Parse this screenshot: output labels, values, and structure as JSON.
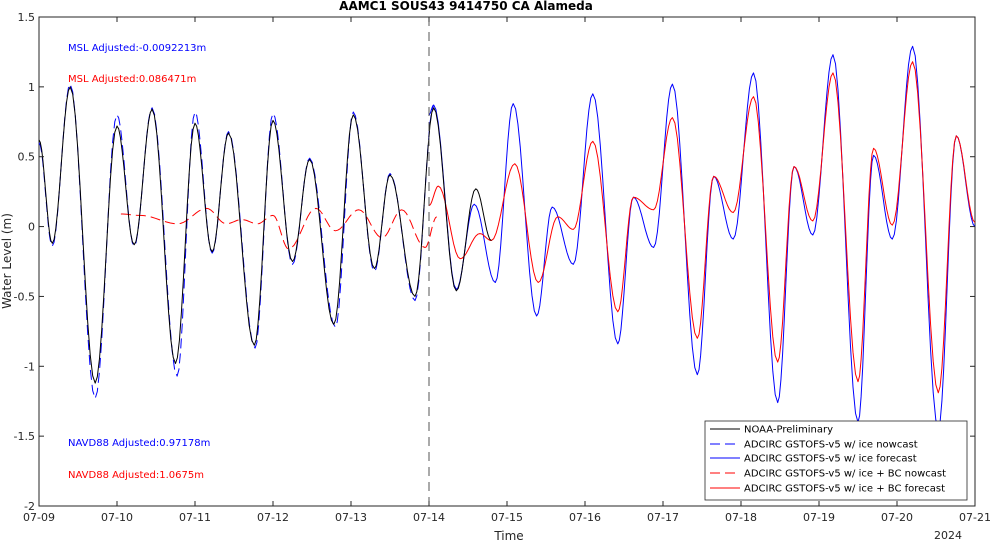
{
  "chart_data": {
    "type": "line",
    "title": "AAMC1 SOUS43 9414750 CA Alameda",
    "xlabel": "Time",
    "ylabel": "Water Level (m)",
    "xlim": [
      "07-09",
      "07-21"
    ],
    "ylim": [
      -2,
      1.5
    ],
    "x_ticks": [
      "07-09",
      "07-10",
      "07-11",
      "07-12",
      "07-13",
      "07-14",
      "07-15",
      "07-16",
      "07-17",
      "07-18",
      "07-19",
      "07-20",
      "07-21"
    ],
    "x_tick_values_days": [
      0,
      1,
      2,
      3,
      4,
      5,
      6,
      7,
      8,
      9,
      10,
      11,
      12
    ],
    "y_ticks": [
      "-2",
      "-1.5",
      "-1",
      "-0.5",
      "0",
      "0.5",
      "1",
      "1.5"
    ],
    "y_tick_values": [
      -2,
      -1.5,
      -1,
      -0.5,
      0,
      0.5,
      1,
      1.5
    ],
    "year_label": "2024",
    "nowcast_forecast_boundary": "07-14",
    "annotations": [
      {
        "text": "MSL Adjusted:-0.0092213m",
        "color": "#0000ff"
      },
      {
        "text": "MSL Adjusted:0.086471m",
        "color": "#ff0000"
      },
      {
        "text": "NAVD88 Adjusted:0.97178m",
        "color": "#0000ff"
      },
      {
        "text": "NAVD88 Adjusted:1.0675m",
        "color": "#ff0000"
      }
    ],
    "legend": {
      "placement": "bottom-right",
      "entries": [
        {
          "name": "NOAA-Preliminary",
          "color": "#000000",
          "style": "solid"
        },
        {
          "name": "ADCIRC GSTOFS-v5 w/ ice nowcast",
          "color": "#0000ff",
          "style": "dashed"
        },
        {
          "name": "ADCIRC GSTOFS-v5 w/ ice forecast",
          "color": "#0000ff",
          "style": "solid"
        },
        {
          "name": "ADCIRC GSTOFS-v5 w/ ice + BC nowcast",
          "color": "#ff0000",
          "style": "dashed"
        },
        {
          "name": "ADCIRC GSTOFS-v5 w/ ice + BC forecast",
          "color": "#ff0000",
          "style": "solid"
        }
      ]
    },
    "series": [
      {
        "name": "NOAA-Preliminary",
        "color": "#000000",
        "style": "solid",
        "extrema": [
          [
            0.0,
            0.62
          ],
          [
            0.17,
            -0.12
          ],
          [
            0.4,
            1.0
          ],
          [
            0.72,
            -1.12
          ],
          [
            1.0,
            0.72
          ],
          [
            1.22,
            -0.13
          ],
          [
            1.45,
            0.84
          ],
          [
            1.75,
            -0.98
          ],
          [
            2.0,
            0.74
          ],
          [
            2.22,
            -0.18
          ],
          [
            2.43,
            0.67
          ],
          [
            2.76,
            -0.85
          ],
          [
            3.0,
            0.76
          ],
          [
            3.25,
            -0.25
          ],
          [
            3.47,
            0.48
          ],
          [
            3.78,
            -0.7
          ],
          [
            4.03,
            0.8
          ],
          [
            4.3,
            -0.3
          ],
          [
            4.5,
            0.37
          ],
          [
            4.82,
            -0.5
          ],
          [
            5.06,
            0.85
          ],
          [
            5.35,
            -0.46
          ],
          [
            5.6,
            0.27
          ],
          [
            5.8,
            -0.1
          ]
        ]
      },
      {
        "name": "ADCIRC GSTOFS-v5 w/ ice nowcast",
        "color": "#0000ff",
        "style": "dashed",
        "extrema": [
          [
            0.0,
            0.6
          ],
          [
            0.17,
            -0.14
          ],
          [
            0.4,
            1.02
          ],
          [
            0.72,
            -1.23
          ],
          [
            1.0,
            0.8
          ],
          [
            1.22,
            -0.14
          ],
          [
            1.45,
            0.85
          ],
          [
            1.77,
            -1.07
          ],
          [
            2.0,
            0.82
          ],
          [
            2.22,
            -0.19
          ],
          [
            2.43,
            0.68
          ],
          [
            2.77,
            -0.87
          ],
          [
            3.0,
            0.81
          ],
          [
            3.25,
            -0.27
          ],
          [
            3.47,
            0.49
          ],
          [
            3.8,
            -0.72
          ],
          [
            4.03,
            0.82
          ],
          [
            4.3,
            -0.32
          ],
          [
            4.5,
            0.38
          ],
          [
            4.82,
            -0.53
          ],
          [
            5.06,
            0.87
          ]
        ]
      },
      {
        "name": "ADCIRC GSTOFS-v5 w/ ice forecast",
        "color": "#0000ff",
        "style": "solid",
        "extrema": [
          [
            5.0,
            0.8
          ],
          [
            5.06,
            0.87
          ],
          [
            5.35,
            -0.45
          ],
          [
            5.58,
            0.16
          ],
          [
            5.85,
            -0.4
          ],
          [
            6.08,
            0.88
          ],
          [
            6.38,
            -0.64
          ],
          [
            6.58,
            0.14
          ],
          [
            6.85,
            -0.27
          ],
          [
            7.1,
            0.95
          ],
          [
            7.42,
            -0.84
          ],
          [
            7.62,
            0.21
          ],
          [
            7.88,
            -0.15
          ],
          [
            8.12,
            1.02
          ],
          [
            8.44,
            -1.06
          ],
          [
            8.65,
            0.36
          ],
          [
            8.9,
            -0.09
          ],
          [
            9.16,
            1.1
          ],
          [
            9.47,
            -1.26
          ],
          [
            9.68,
            0.43
          ],
          [
            9.92,
            -0.06
          ],
          [
            10.18,
            1.23
          ],
          [
            10.5,
            -1.4
          ],
          [
            10.7,
            0.51
          ],
          [
            10.94,
            -0.09
          ],
          [
            11.2,
            1.29
          ],
          [
            11.53,
            -1.45
          ],
          [
            11.76,
            0.65
          ],
          [
            12.0,
            0.0
          ]
        ]
      },
      {
        "name": "ADCIRC GSTOFS-v5 w/ ice + BC nowcast",
        "color": "#ff0000",
        "style": "dashed",
        "extrema": [
          [
            1.05,
            0.09
          ],
          [
            1.3,
            0.08
          ],
          [
            1.78,
            0.02
          ],
          [
            2.15,
            0.13
          ],
          [
            2.4,
            0.02
          ],
          [
            2.6,
            0.05
          ],
          [
            2.8,
            0.02
          ],
          [
            3.0,
            0.08
          ],
          [
            3.2,
            -0.16
          ],
          [
            3.55,
            0.13
          ],
          [
            3.8,
            -0.03
          ],
          [
            4.1,
            0.12
          ],
          [
            4.4,
            -0.08
          ],
          [
            4.65,
            0.12
          ],
          [
            4.95,
            -0.15
          ],
          [
            5.1,
            0.07
          ]
        ]
      },
      {
        "name": "ADCIRC GSTOFS-v5 w/ ice + BC forecast",
        "color": "#ff0000",
        "style": "solid",
        "extrema": [
          [
            5.0,
            0.15
          ],
          [
            5.12,
            0.29
          ],
          [
            5.4,
            -0.23
          ],
          [
            5.65,
            -0.05
          ],
          [
            5.8,
            -0.1
          ],
          [
            6.1,
            0.45
          ],
          [
            6.4,
            -0.4
          ],
          [
            6.65,
            0.07
          ],
          [
            6.85,
            -0.02
          ],
          [
            7.1,
            0.61
          ],
          [
            7.42,
            -0.61
          ],
          [
            7.62,
            0.21
          ],
          [
            7.88,
            0.12
          ],
          [
            8.12,
            0.78
          ],
          [
            8.44,
            -0.8
          ],
          [
            8.65,
            0.36
          ],
          [
            8.9,
            0.1
          ],
          [
            9.16,
            0.93
          ],
          [
            9.47,
            -0.97
          ],
          [
            9.68,
            0.43
          ],
          [
            9.92,
            0.04
          ],
          [
            10.18,
            1.1
          ],
          [
            10.5,
            -1.11
          ],
          [
            10.7,
            0.56
          ],
          [
            10.94,
            0.01
          ],
          [
            11.2,
            1.18
          ],
          [
            11.53,
            -1.19
          ],
          [
            11.76,
            0.65
          ],
          [
            12.0,
            0.03
          ]
        ]
      }
    ]
  }
}
